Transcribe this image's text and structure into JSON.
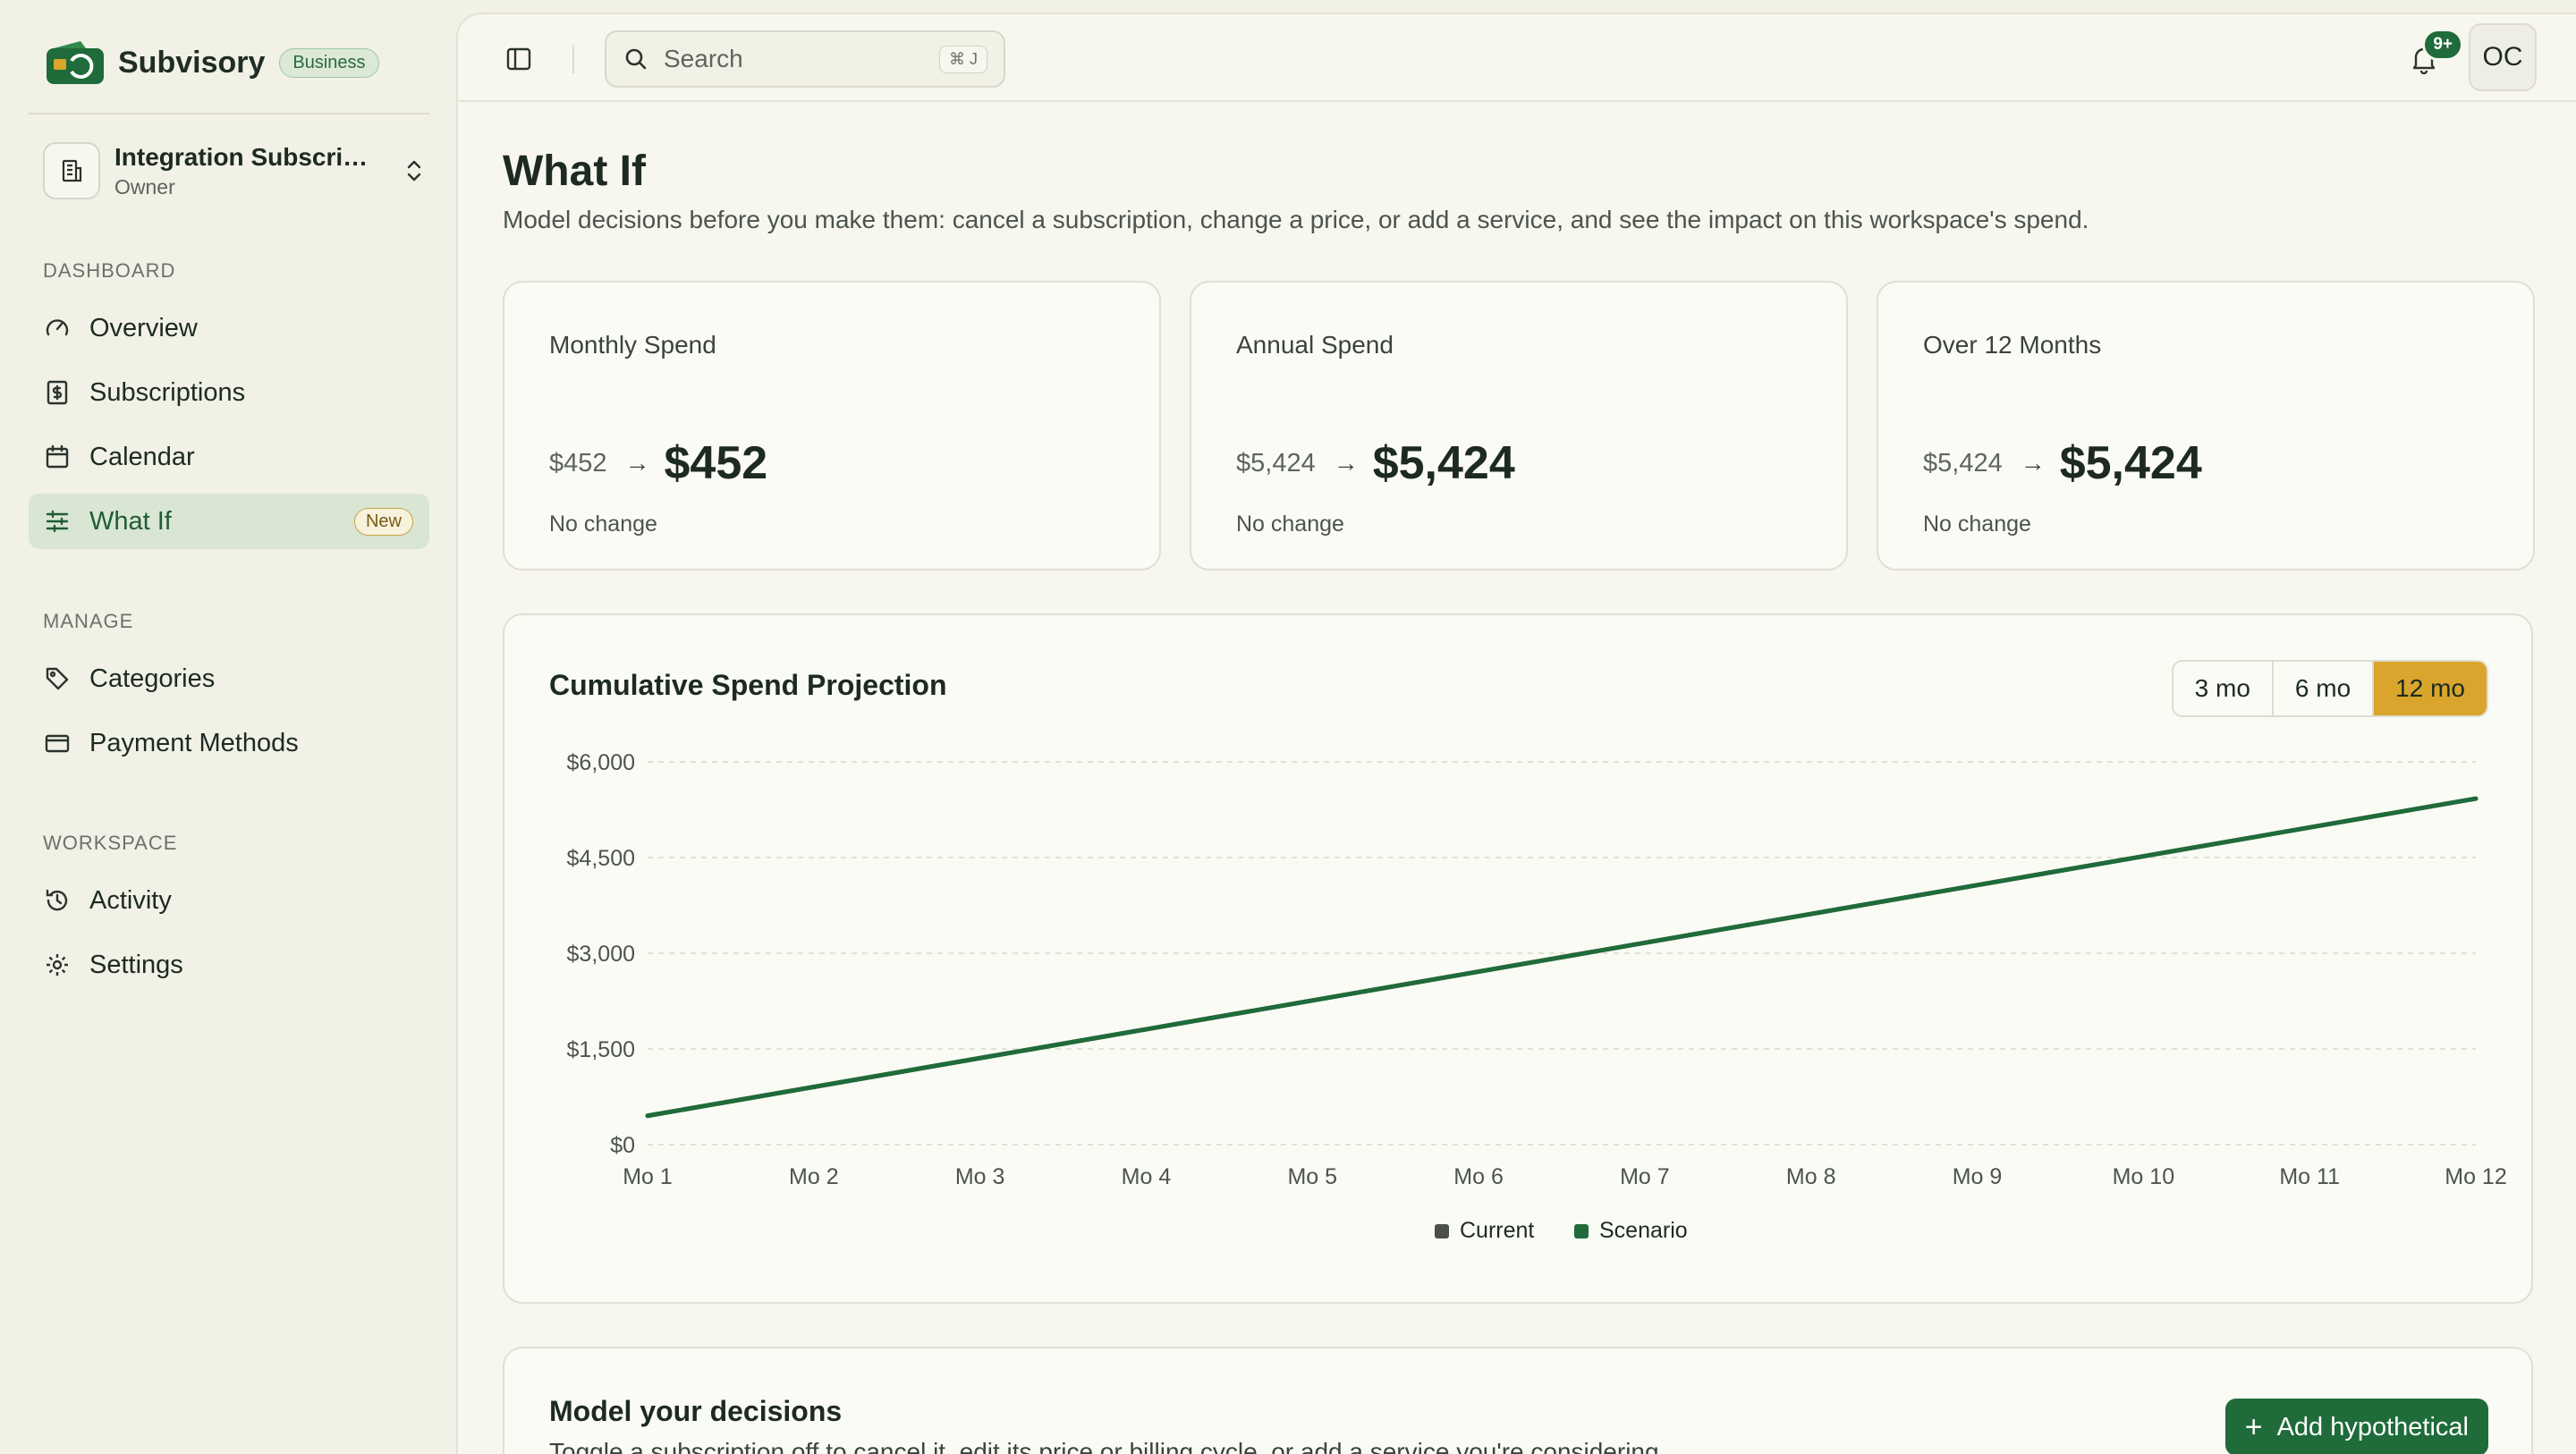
{
  "brand": {
    "name": "Subvisory",
    "plan_badge": "Business",
    "accent": "#1f6b3a"
  },
  "workspace": {
    "name": "Integration Subscriptions",
    "role": "Owner"
  },
  "sidebar": {
    "sections": [
      {
        "title": "DASHBOARD",
        "items": [
          {
            "label": "Overview",
            "icon": "gauge-icon"
          },
          {
            "label": "Subscriptions",
            "icon": "receipt-icon"
          },
          {
            "label": "Calendar",
            "icon": "calendar-icon"
          },
          {
            "label": "What If",
            "icon": "sliders-icon",
            "active": true,
            "badge": "New"
          }
        ]
      },
      {
        "title": "MANAGE",
        "items": [
          {
            "label": "Categories",
            "icon": "tag-icon"
          },
          {
            "label": "Payment Methods",
            "icon": "credit-card-icon"
          }
        ]
      },
      {
        "title": "WORKSPACE",
        "items": [
          {
            "label": "Activity",
            "icon": "history-icon"
          },
          {
            "label": "Settings",
            "icon": "gear-icon"
          }
        ]
      }
    ]
  },
  "topbar": {
    "search_placeholder": "Search",
    "search_shortcut": "⌘ J",
    "notifications_badge": "9+",
    "avatar_initials": "OC"
  },
  "page": {
    "title": "What If",
    "subtitle": "Model decisions before you make them: cancel a subscription, change a price, or add a service, and see the impact on this workspace's spend."
  },
  "cards": [
    {
      "label": "Monthly Spend",
      "current": "$452",
      "scenario": "$452",
      "note": "No change"
    },
    {
      "label": "Annual Spend",
      "current": "$5,424",
      "scenario": "$5,424",
      "note": "No change"
    },
    {
      "label": "Over 12 Months",
      "current": "$5,424",
      "scenario": "$5,424",
      "note": "No change"
    }
  ],
  "projection": {
    "title": "Cumulative Spend Projection",
    "ranges": [
      "3 mo",
      "6 mo",
      "12 mo"
    ],
    "active_range": "12 mo"
  },
  "chart_data": {
    "type": "line",
    "categories": [
      "Mo 1",
      "Mo 2",
      "Mo 3",
      "Mo 4",
      "Mo 5",
      "Mo 6",
      "Mo 7",
      "Mo 8",
      "Mo 9",
      "Mo 10",
      "Mo 11",
      "Mo 12"
    ],
    "series": [
      {
        "name": "Current",
        "color": "#4a4f4b",
        "values": [
          452,
          904,
          1356,
          1808,
          2260,
          2712,
          3164,
          3616,
          4068,
          4520,
          4972,
          5424
        ]
      },
      {
        "name": "Scenario",
        "color": "#1f6b3a",
        "values": [
          452,
          904,
          1356,
          1808,
          2260,
          2712,
          3164,
          3616,
          4068,
          4520,
          4972,
          5424
        ]
      }
    ],
    "yticks": [
      0,
      1500,
      3000,
      4500,
      6000
    ],
    "ytick_labels": [
      "$0",
      "$1,500",
      "$3,000",
      "$4,500",
      "$6,000"
    ],
    "ylim": [
      0,
      6000
    ],
    "grid": true,
    "legend": "bottom-center"
  },
  "decisions": {
    "title": "Model your decisions",
    "subtitle": "Toggle a subscription off to cancel it, edit its price or billing cycle, or add a service you're considering.",
    "add_label": "Add hypothetical"
  }
}
